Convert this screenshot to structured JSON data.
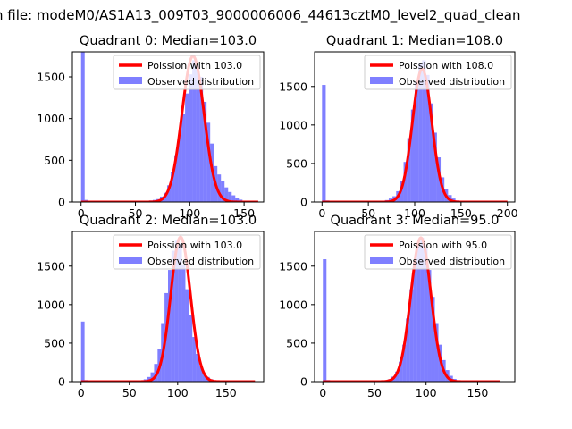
{
  "suptitle": "n file: modeM0/AS1A13_009T03_9000006006_44613cztM0_level2_quad_clean",
  "colors": {
    "observed": "#0000ff",
    "observed_alpha": 0.5,
    "poisson": "#ff0000",
    "axis": "#000000"
  },
  "chart_data": [
    {
      "type": "bar",
      "title": "Quadrant 0: Median=103.0",
      "xlim": [
        -8,
        168
      ],
      "ylim": [
        0,
        1800
      ],
      "xticks": [
        0,
        50,
        100,
        150
      ],
      "yticks": [
        0,
        500,
        1000,
        1500
      ],
      "legend": {
        "placement": "top-right",
        "entries": [
          "Poission with 103.0",
          "Observed distribution"
        ]
      },
      "poisson_mean": 103.0,
      "poisson_peak": 1750,
      "poisson_range": [
        0,
        163
      ],
      "observed": {
        "bin_width": 3.3,
        "x": [
          0,
          3.3,
          56.1,
          59.4,
          62.7,
          66.0,
          69.3,
          72.6,
          75.9,
          79.2,
          82.5,
          85.8,
          89.1,
          92.4,
          95.7,
          99.0,
          102.3,
          105.6,
          108.9,
          112.2,
          115.5,
          118.8,
          122.1,
          125.4,
          128.7,
          132.0,
          135.3,
          138.6,
          141.9,
          145.2,
          148.5
        ],
        "y": [
          1800,
          25,
          10,
          12,
          18,
          25,
          35,
          65,
          110,
          200,
          360,
          560,
          800,
          1050,
          1300,
          1530,
          1700,
          1630,
          1500,
          1200,
          950,
          700,
          430,
          330,
          250,
          175,
          120,
          80,
          50,
          28,
          12
        ]
      }
    },
    {
      "type": "bar",
      "title": "Quadrant 1: Median=108.0",
      "xlim": [
        -8,
        208
      ],
      "ylim": [
        0,
        1950
      ],
      "xticks": [
        0,
        50,
        100,
        150,
        200
      ],
      "yticks": [
        0,
        500,
        1000,
        1500
      ],
      "legend": {
        "placement": "top-right",
        "entries": [
          "Poission with 108.0",
          "Observed distribution"
        ]
      },
      "poisson_mean": 108.0,
      "poisson_peak": 1730,
      "poisson_range": [
        0,
        200
      ],
      "observed": {
        "bin_width": 4.0,
        "x": [
          0,
          4,
          60,
          64,
          68,
          72,
          76,
          80,
          84,
          88,
          92,
          96,
          100,
          104,
          108,
          112,
          116,
          120,
          124,
          128,
          132,
          136,
          140,
          144,
          148
        ],
        "y": [
          1520,
          20,
          10,
          15,
          25,
          45,
          75,
          140,
          270,
          520,
          830,
          1200,
          1560,
          1800,
          1840,
          1650,
          1280,
          900,
          580,
          320,
          170,
          90,
          45,
          20,
          8
        ]
      }
    },
    {
      "type": "bar",
      "title": "Quadrant 2: Median=103.0",
      "xlim": [
        -9,
        189
      ],
      "ylim": [
        0,
        1950
      ],
      "xticks": [
        0,
        50,
        100,
        150
      ],
      "yticks": [
        0,
        500,
        1000,
        1500
      ],
      "legend": {
        "placement": "top-right",
        "entries": [
          "Poission with 103.0",
          "Observed distribution"
        ]
      },
      "poisson_mean": 103.0,
      "poisson_peak": 1880,
      "poisson_range": [
        0,
        180
      ],
      "observed": {
        "bin_width": 3.6,
        "x": [
          0,
          3.6,
          57.6,
          61.2,
          64.8,
          68.4,
          72.0,
          75.6,
          79.2,
          82.8,
          86.4,
          90.0,
          93.6,
          97.2,
          100.8,
          104.4,
          108.0,
          111.6,
          115.2,
          118.8,
          122.4,
          126.0,
          129.6,
          133.2,
          136.8,
          140.4
        ],
        "y": [
          780,
          20,
          10,
          15,
          30,
          60,
          120,
          230,
          420,
          760,
          1150,
          1450,
          1700,
          1830,
          1790,
          1520,
          1200,
          860,
          580,
          360,
          200,
          110,
          60,
          30,
          15,
          6
        ]
      }
    },
    {
      "type": "bar",
      "title": "Quadrant 3: Median=95.0",
      "xlim": [
        -8,
        186
      ],
      "ylim": [
        0,
        1950
      ],
      "xticks": [
        0,
        50,
        100,
        150
      ],
      "yticks": [
        0,
        500,
        1000,
        1500
      ],
      "legend": {
        "placement": "top-right",
        "entries": [
          "Poission with 95.0",
          "Observed distribution"
        ]
      },
      "poisson_mean": 95.0,
      "poisson_peak": 1870,
      "poisson_range": [
        0,
        172
      ],
      "observed": {
        "bin_width": 3.5,
        "x": [
          0,
          3.5,
          56,
          59.5,
          63,
          66.5,
          70,
          73.5,
          77,
          80.5,
          84,
          87.5,
          91,
          94.5,
          98,
          101.5,
          105,
          108.5,
          112,
          115.5,
          119,
          122.5,
          126,
          129.5,
          133
        ],
        "y": [
          1590,
          20,
          10,
          15,
          30,
          65,
          130,
          260,
          480,
          820,
          1200,
          1550,
          1780,
          1870,
          1740,
          1450,
          1100,
          760,
          480,
          280,
          150,
          75,
          35,
          15,
          6
        ]
      }
    }
  ]
}
